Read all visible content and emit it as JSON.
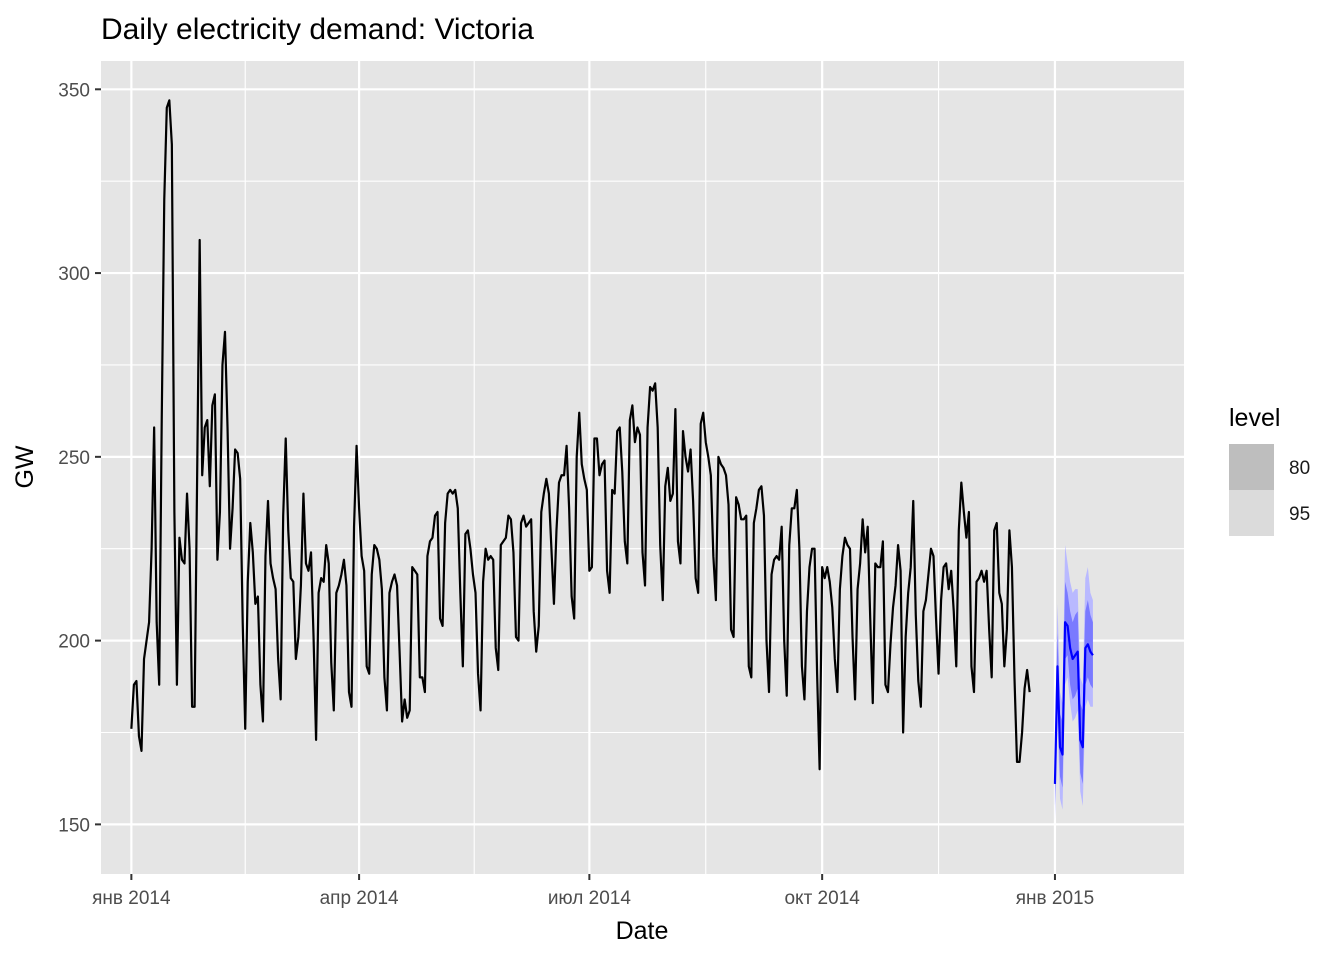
{
  "chart_data": {
    "type": "line",
    "title": "Daily electricity demand: Victoria",
    "xlabel": "Date",
    "ylabel": "GW",
    "x_ticks": [
      {
        "date": "2014-01-01",
        "label": "янв 2014"
      },
      {
        "date": "2014-04-01",
        "label": "апр 2014"
      },
      {
        "date": "2014-07-01",
        "label": "июл 2014"
      },
      {
        "date": "2014-10-01",
        "label": "окт 2014"
      },
      {
        "date": "2015-01-01",
        "label": "янв 2015"
      }
    ],
    "x_range": [
      "2013-12-20",
      "2015-02-21"
    ],
    "y_ticks": [
      150,
      200,
      250,
      300,
      350
    ],
    "ylim": [
      136.5,
      357.7
    ],
    "grid": true,
    "legend": {
      "title": "level",
      "position": "right",
      "entries": [
        {
          "label": "80",
          "color": "#bebebe"
        },
        {
          "label": "95",
          "color": "#dbdbdb"
        }
      ]
    },
    "colors": {
      "panel": "#e5e5e5",
      "grid": "#ffffff",
      "actual_line": "#000000",
      "forecast_line": "#0000ff",
      "interval_80": "#7a7aff",
      "interval_95": "#b9b9ff"
    },
    "series": [
      {
        "start_date": "2014-01-01",
        "values": [
          176,
          188,
          189,
          174,
          170,
          195,
          200,
          205,
          225,
          258,
          205,
          188,
          260,
          320,
          345,
          347,
          335,
          235,
          188,
          228,
          222,
          221,
          240,
          225,
          182,
          182,
          245,
          309,
          245,
          258,
          260,
          242,
          264,
          267,
          222,
          235,
          275,
          284,
          258,
          225,
          236,
          252,
          251,
          244,
          205,
          176,
          216,
          232,
          224,
          210,
          212,
          188,
          178,
          223,
          238,
          221,
          217,
          214,
          195,
          184,
          234,
          255,
          230,
          217,
          216,
          195,
          201,
          215,
          240,
          221,
          219,
          224,
          201,
          173,
          213,
          217,
          216,
          226,
          221,
          194,
          181,
          213,
          215,
          218,
          222,
          215,
          186,
          182,
          231,
          253,
          236,
          223,
          219,
          193,
          191,
          218,
          226,
          225,
          222,
          214,
          190,
          181,
          213,
          216,
          218,
          215,
          197,
          178,
          184,
          179,
          181,
          220,
          219,
          218,
          190,
          190,
          186,
          223,
          227,
          228,
          234,
          235,
          206,
          204,
          232,
          240,
          241,
          240,
          241,
          236,
          213,
          193,
          229,
          230,
          225,
          218,
          213,
          191,
          181,
          216,
          225,
          222,
          223,
          222,
          198,
          192,
          226,
          227,
          228,
          234,
          233,
          224,
          201,
          200,
          232,
          234,
          231,
          232,
          233,
          208,
          197,
          204,
          235,
          240,
          244,
          240,
          225,
          210,
          230,
          243,
          245,
          245,
          253,
          236,
          212,
          206,
          250,
          262,
          248,
          244,
          241,
          219,
          220,
          255,
          255,
          245,
          248,
          249,
          219,
          213,
          241,
          240,
          257,
          258,
          246,
          227,
          221,
          260,
          264,
          254,
          258,
          256,
          224,
          215,
          258,
          269,
          268,
          270,
          258,
          226,
          211,
          242,
          247,
          238,
          240,
          263,
          227,
          221,
          257,
          250,
          246,
          252,
          238,
          217,
          213,
          259,
          262,
          254,
          250,
          245,
          223,
          211,
          250,
          248,
          247,
          245,
          237,
          203,
          201,
          239,
          237,
          233,
          233,
          234,
          193,
          190,
          232,
          236,
          241,
          242,
          234,
          200,
          186,
          218,
          222,
          223,
          222,
          231,
          200,
          185,
          226,
          236,
          236,
          241,
          225,
          193,
          184,
          208,
          220,
          225,
          225,
          191,
          165,
          220,
          217,
          220,
          216,
          209,
          195,
          186,
          214,
          223,
          228,
          226,
          225,
          201,
          184,
          214,
          221,
          233,
          224,
          231,
          206,
          183,
          221,
          220,
          220,
          227,
          188,
          186,
          199,
          209,
          215,
          226,
          219,
          175,
          201,
          213,
          220,
          238,
          207,
          189,
          182,
          208,
          211,
          218,
          225,
          223,
          206,
          191,
          211,
          220,
          221,
          214,
          219,
          208,
          193,
          230,
          243,
          235,
          228,
          235,
          193,
          186,
          216,
          217,
          219,
          216,
          219,
          203,
          190,
          230,
          232,
          213,
          210,
          193,
          203,
          230,
          220,
          190,
          167,
          167,
          175,
          187,
          192,
          186
        ]
      }
    ],
    "forecast": {
      "start_date": "2015-01-01",
      "mean": [
        161,
        193,
        171,
        169,
        205,
        204,
        198,
        195,
        196,
        197,
        173,
        171,
        198,
        199,
        197,
        196
      ],
      "lower80": [
        155,
        184,
        163,
        160,
        195,
        196,
        188,
        184,
        185,
        187,
        164,
        161,
        188,
        190,
        188,
        187
      ],
      "upper80": [
        168,
        202,
        180,
        178,
        216,
        213,
        208,
        205,
        207,
        208,
        183,
        181,
        208,
        211,
        207,
        205
      ],
      "lower95": [
        151,
        178,
        157,
        154,
        188,
        190,
        183,
        178,
        179,
        181,
        159,
        155,
        182,
        184,
        182,
        182
      ],
      "upper95": [
        172,
        210,
        186,
        183,
        226,
        221,
        216,
        213,
        214,
        214,
        190,
        188,
        217,
        220,
        213,
        211
      ]
    }
  }
}
